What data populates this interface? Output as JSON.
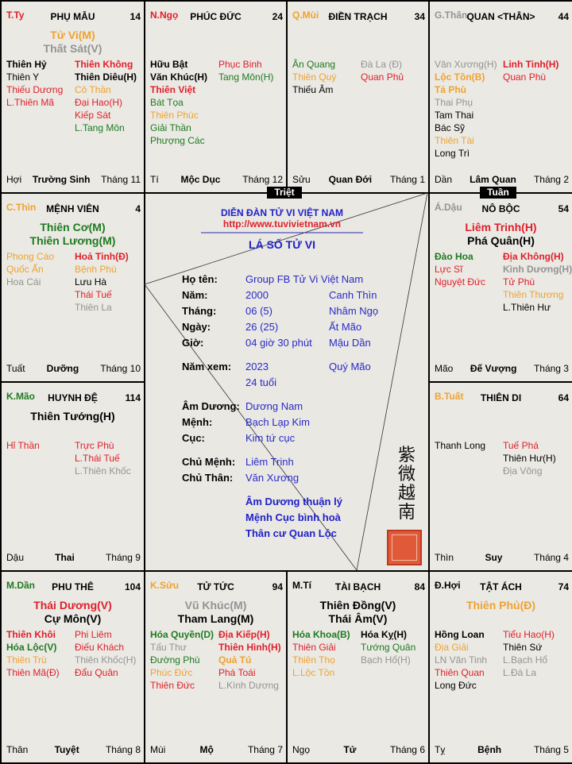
{
  "colors": {
    "red": "#e0202a",
    "green": "#1f7a1f",
    "orange": "#f0a22e",
    "gray": "#939393",
    "black": "#000000",
    "blue": "#2020c8"
  },
  "palaces": [
    {
      "canchi": "T.Ty",
      "canchi_color": "red",
      "name": "PHỤ MẪU",
      "num": "14",
      "mains": [
        [
          "Tử Vi(M)",
          "orange"
        ],
        [
          "Thất Sát(V)",
          "gray"
        ]
      ],
      "left": [
        [
          "Thiên Hỷ",
          "black",
          1
        ],
        [
          "Thiên Y",
          "black",
          0
        ],
        [
          "Thiếu Dương",
          "red",
          0
        ],
        [
          "L.Thiên Mã",
          "red",
          0
        ]
      ],
      "right": [
        [
          "Thiên Không",
          "red",
          1
        ],
        [
          "Thiên Diêu(H)",
          "black",
          1
        ],
        [
          "Cô Thần",
          "orange",
          0
        ],
        [
          "Đại Hao(H)",
          "red",
          0
        ],
        [
          "Kiếp Sát",
          "red",
          0
        ],
        [
          "L.Tang Môn",
          "green",
          0
        ]
      ],
      "branch": "Hợi",
      "stage": "Trường Sinh",
      "month": "Tháng 11"
    },
    {
      "canchi": "N.Ngọ",
      "canchi_color": "red",
      "name": "PHÚC ĐỨC",
      "num": "24",
      "mains": [],
      "left": [
        [
          "Hữu Bật",
          "black",
          1
        ],
        [
          "Văn Khúc(H)",
          "black",
          1
        ],
        [
          "Thiên Việt",
          "red",
          1
        ],
        [
          "Bát Tọa",
          "green",
          0
        ],
        [
          "Thiên Phúc",
          "orange",
          0
        ],
        [
          "Giải Thần",
          "green",
          0
        ],
        [
          "Phượng Các",
          "green",
          0
        ]
      ],
      "right": [
        [
          "Phục Binh",
          "red",
          0
        ],
        [
          "Tang Môn(H)",
          "green",
          0
        ]
      ],
      "branch": "Tí",
      "stage": "Mộc Dục",
      "month": "Tháng 12"
    },
    {
      "canchi": "Q.Mùi",
      "canchi_color": "orange",
      "name": "ĐIỀN TRẠCH",
      "num": "34",
      "mains": [],
      "left": [
        [
          "Ân Quang",
          "green",
          0
        ],
        [
          "Thiên Quý",
          "orange",
          0
        ],
        [
          "Thiếu Âm",
          "black",
          0
        ]
      ],
      "right": [
        [
          "Đà La (Đ)",
          "gray",
          0
        ],
        [
          "Quan Phủ",
          "red",
          0
        ]
      ],
      "branch": "Sửu",
      "stage": "Quan Đới",
      "month": "Tháng 1"
    },
    {
      "canchi": "G.Thân",
      "canchi_color": "gray",
      "name": "QUAN <THÂN>",
      "num": "44",
      "mains": [],
      "left": [
        [
          "Văn Xương(H)",
          "gray",
          0
        ],
        [
          "Lộc Tồn(B)",
          "orange",
          1
        ],
        [
          "Tả Phù",
          "orange",
          1
        ],
        [
          "Thai Phụ",
          "gray",
          0
        ],
        [
          "Tam Thai",
          "black",
          0
        ],
        [
          "Bác Sỹ",
          "black",
          0
        ],
        [
          "Thiên Tài",
          "orange",
          0
        ],
        [
          "Long Trì",
          "black",
          0
        ]
      ],
      "right": [
        [
          "Linh Tinh(H)",
          "red",
          1
        ],
        [
          "Quan Phù",
          "red",
          0
        ]
      ],
      "branch": "Dần",
      "stage": "Lâm Quan",
      "month": "Tháng 2"
    },
    {
      "canchi": "C.Thìn",
      "canchi_color": "orange",
      "name": "MỆNH VIÊN",
      "num": "4",
      "mains": [
        [
          "Thiên Cơ(M)",
          "green"
        ],
        [
          "Thiên Lương(M)",
          "green"
        ]
      ],
      "left": [
        [
          "Phong Cáo",
          "orange",
          0
        ],
        [
          "Quốc Ấn",
          "orange",
          0
        ],
        [
          "Hoa Cái",
          "gray",
          0
        ]
      ],
      "right": [
        [
          "Hoả Tinh(Đ)",
          "red",
          1
        ],
        [
          "Bệnh Phù",
          "orange",
          0
        ],
        [
          "Lưu Hà",
          "black",
          0
        ],
        [
          "Thái Tuế",
          "red",
          0
        ],
        [
          "Thiên La",
          "gray",
          0
        ]
      ],
      "branch": "Tuất",
      "stage": "Dưỡng",
      "month": "Tháng 10"
    },
    {
      "canchi": "Á.Dậu",
      "canchi_color": "gray",
      "name": "NÔ BỘC",
      "num": "54",
      "mains": [
        [
          "Liêm Trinh(H)",
          "red"
        ],
        [
          "Phá Quân(H)",
          "black"
        ]
      ],
      "left": [
        [
          "Đào Hoa",
          "green",
          1
        ],
        [
          "Lực Sĩ",
          "red",
          0
        ],
        [
          "Nguyệt Đức",
          "red",
          0
        ]
      ],
      "right": [
        [
          "Địa Không(H)",
          "red",
          1
        ],
        [
          "Kình Dương(H)",
          "gray",
          1
        ],
        [
          "Tử Phù",
          "red",
          0
        ],
        [
          "Thiên Thương",
          "orange",
          0
        ],
        [
          "L.Thiên Hư",
          "black",
          0
        ]
      ],
      "branch": "Mão",
      "stage": "Đế Vượng",
      "month": "Tháng 3"
    },
    {
      "canchi": "K.Mão",
      "canchi_color": "green",
      "name": "HUYNH ĐỆ",
      "num": "114",
      "mains": [
        [
          "Thiên Tướng(H)",
          "black"
        ]
      ],
      "left": [
        [
          "Hỉ Thần",
          "red",
          0
        ]
      ],
      "right": [
        [
          "Trực Phù",
          "red",
          0
        ],
        [
          "L.Thái Tuế",
          "red",
          0
        ],
        [
          "L.Thiên Khốc",
          "gray",
          0
        ]
      ],
      "branch": "Dậu",
      "stage": "Thai",
      "month": "Tháng 9"
    },
    {
      "canchi": "B.Tuất",
      "canchi_color": "orange",
      "name": "THIÊN DI",
      "num": "64",
      "mains": [],
      "left": [
        [
          "Thanh Long",
          "black",
          0
        ]
      ],
      "right": [
        [
          "Tuế Phá",
          "red",
          0
        ],
        [
          "Thiên Hư(H)",
          "black",
          0
        ],
        [
          "Địa Võng",
          "gray",
          0
        ]
      ],
      "branch": "Thìn",
      "stage": "Suy",
      "month": "Tháng 4"
    },
    {
      "canchi": "M.Dần",
      "canchi_color": "green",
      "name": "PHU THÊ",
      "num": "104",
      "mains": [
        [
          "Thái Dương(V)",
          "red"
        ],
        [
          "Cự Môn(V)",
          "black"
        ]
      ],
      "left": [
        [
          "Thiên Khôi",
          "red",
          1
        ],
        [
          "Hóa Lộc(V)",
          "green",
          1
        ],
        [
          "Thiên Trù",
          "orange",
          0
        ],
        [
          "Thiên Mã(Đ)",
          "red",
          0
        ]
      ],
      "right": [
        [
          "Phi Liêm",
          "red",
          0
        ],
        [
          "Điếu Khách",
          "red",
          0
        ],
        [
          "Thiên Khốc(H)",
          "gray",
          0
        ],
        [
          "Đẩu Quân",
          "red",
          0
        ]
      ],
      "branch": "Thân",
      "stage": "Tuyệt",
      "month": "Tháng 8"
    },
    {
      "canchi": "K.Sửu",
      "canchi_color": "orange",
      "name": "TỬ TỨC",
      "num": "94",
      "mains": [
        [
          "Vũ Khúc(M)",
          "gray"
        ],
        [
          "Tham Lang(M)",
          "black"
        ]
      ],
      "left": [
        [
          "Hóa Quyền(D)",
          "green",
          1
        ],
        [
          "Tấu Thư",
          "gray",
          0
        ],
        [
          "Đường Phù",
          "green",
          0
        ],
        [
          "Phúc Đức",
          "orange",
          0
        ],
        [
          "Thiên Đức",
          "red",
          0
        ]
      ],
      "right": [
        [
          "Địa Kiếp(H)",
          "red",
          1
        ],
        [
          "Thiên Hình(H)",
          "red",
          1
        ],
        [
          "Quả Tú",
          "orange",
          1
        ],
        [
          "Phá Toái",
          "red",
          0
        ],
        [
          "L.Kình Dương",
          "gray",
          0
        ]
      ],
      "branch": "Mùi",
      "stage": "Mộ",
      "month": "Tháng 7"
    },
    {
      "canchi": "M.Tí",
      "canchi_color": "black",
      "name": "TÀI BẠCH",
      "num": "84",
      "mains": [
        [
          "Thiên Đồng(V)",
          "black"
        ],
        [
          "Thái Âm(V)",
          "black"
        ]
      ],
      "left": [
        [
          "Hóa Khoa(B)",
          "green",
          1
        ],
        [
          "Thiên Giải",
          "red",
          0
        ],
        [
          "Thiên Thọ",
          "orange",
          0
        ],
        [
          "L.Lộc Tồn",
          "orange",
          0
        ]
      ],
      "right": [
        [
          "Hóa Kỵ(H)",
          "black",
          1
        ],
        [
          "Tướng Quân",
          "green",
          0
        ],
        [
          "Bạch Hổ(H)",
          "gray",
          0
        ]
      ],
      "branch": "Ngọ",
      "stage": "Tử",
      "month": "Tháng 6"
    },
    {
      "canchi": "Đ.Hợi",
      "canchi_color": "black",
      "name": "TẬT ÁCH",
      "num": "74",
      "mains": [
        [
          "Thiên Phủ(Đ)",
          "orange"
        ]
      ],
      "left": [
        [
          "Hồng Loan",
          "black",
          1
        ],
        [
          "Địa Giải",
          "orange",
          0
        ],
        [
          "LN Văn Tinh",
          "gray",
          0
        ],
        [
          "Thiên Quan",
          "red",
          0
        ],
        [
          "Long Đức",
          "black",
          0
        ]
      ],
      "right": [
        [
          "Tiểu Hao(H)",
          "red",
          0
        ],
        [
          "Thiên Sứ",
          "black",
          0
        ],
        [
          "L.Bạch Hổ",
          "gray",
          0
        ],
        [
          "L.Đà La",
          "gray",
          0
        ]
      ],
      "branch": "Tỵ",
      "stage": "Bệnh",
      "month": "Tháng 5"
    }
  ],
  "markers": {
    "triet": "Triệt",
    "tuan": "Tuần"
  },
  "center": {
    "forum": "DIỄN ĐÀN TỬ VI VIỆT NAM",
    "url": "http://www.tuvivietnam.vn",
    "title": "LÁ SỐ TỬ VI",
    "rows": [
      {
        "label": "Họ tên:",
        "v1": "Group FB Tử Vi Việt Nam",
        "v2": ""
      },
      {
        "label": "Năm:",
        "v1": "2000",
        "v2": "Canh Thìn"
      },
      {
        "label": "Tháng:",
        "v1": "06 (5)",
        "v2": "Nhâm Ngọ"
      },
      {
        "label": "Ngày:",
        "v1": "26 (25)",
        "v2": "Ất Mão"
      },
      {
        "label": "Giờ:",
        "v1": "04 giờ 30 phút",
        "v2": "Mậu Dần"
      },
      {
        "label": "Năm xem:",
        "v1": "2023",
        "v2": "Quý Mão"
      },
      {
        "label": "",
        "v1": "24 tuổi",
        "v2": ""
      },
      {
        "label": "Âm Dương:",
        "v1": "Dương Nam",
        "v2": ""
      },
      {
        "label": "Mệnh:",
        "v1": "Bạch Lạp Kim",
        "v2": ""
      },
      {
        "label": "Cục:",
        "v1": "Kim tứ cục",
        "v2": ""
      },
      {
        "label": "Chủ Mệnh:",
        "v1": "Liêm Trinh",
        "v2": ""
      },
      {
        "label": "Chủ Thân:",
        "v1": "Văn Xương",
        "v2": ""
      }
    ],
    "notes": [
      "Âm Dương thuận lý",
      "Mệnh Cục bình hoà",
      "Thân cư Quan Lộc"
    ],
    "calligraphy": "紫微越南",
    "seal": "seal-stamp"
  }
}
